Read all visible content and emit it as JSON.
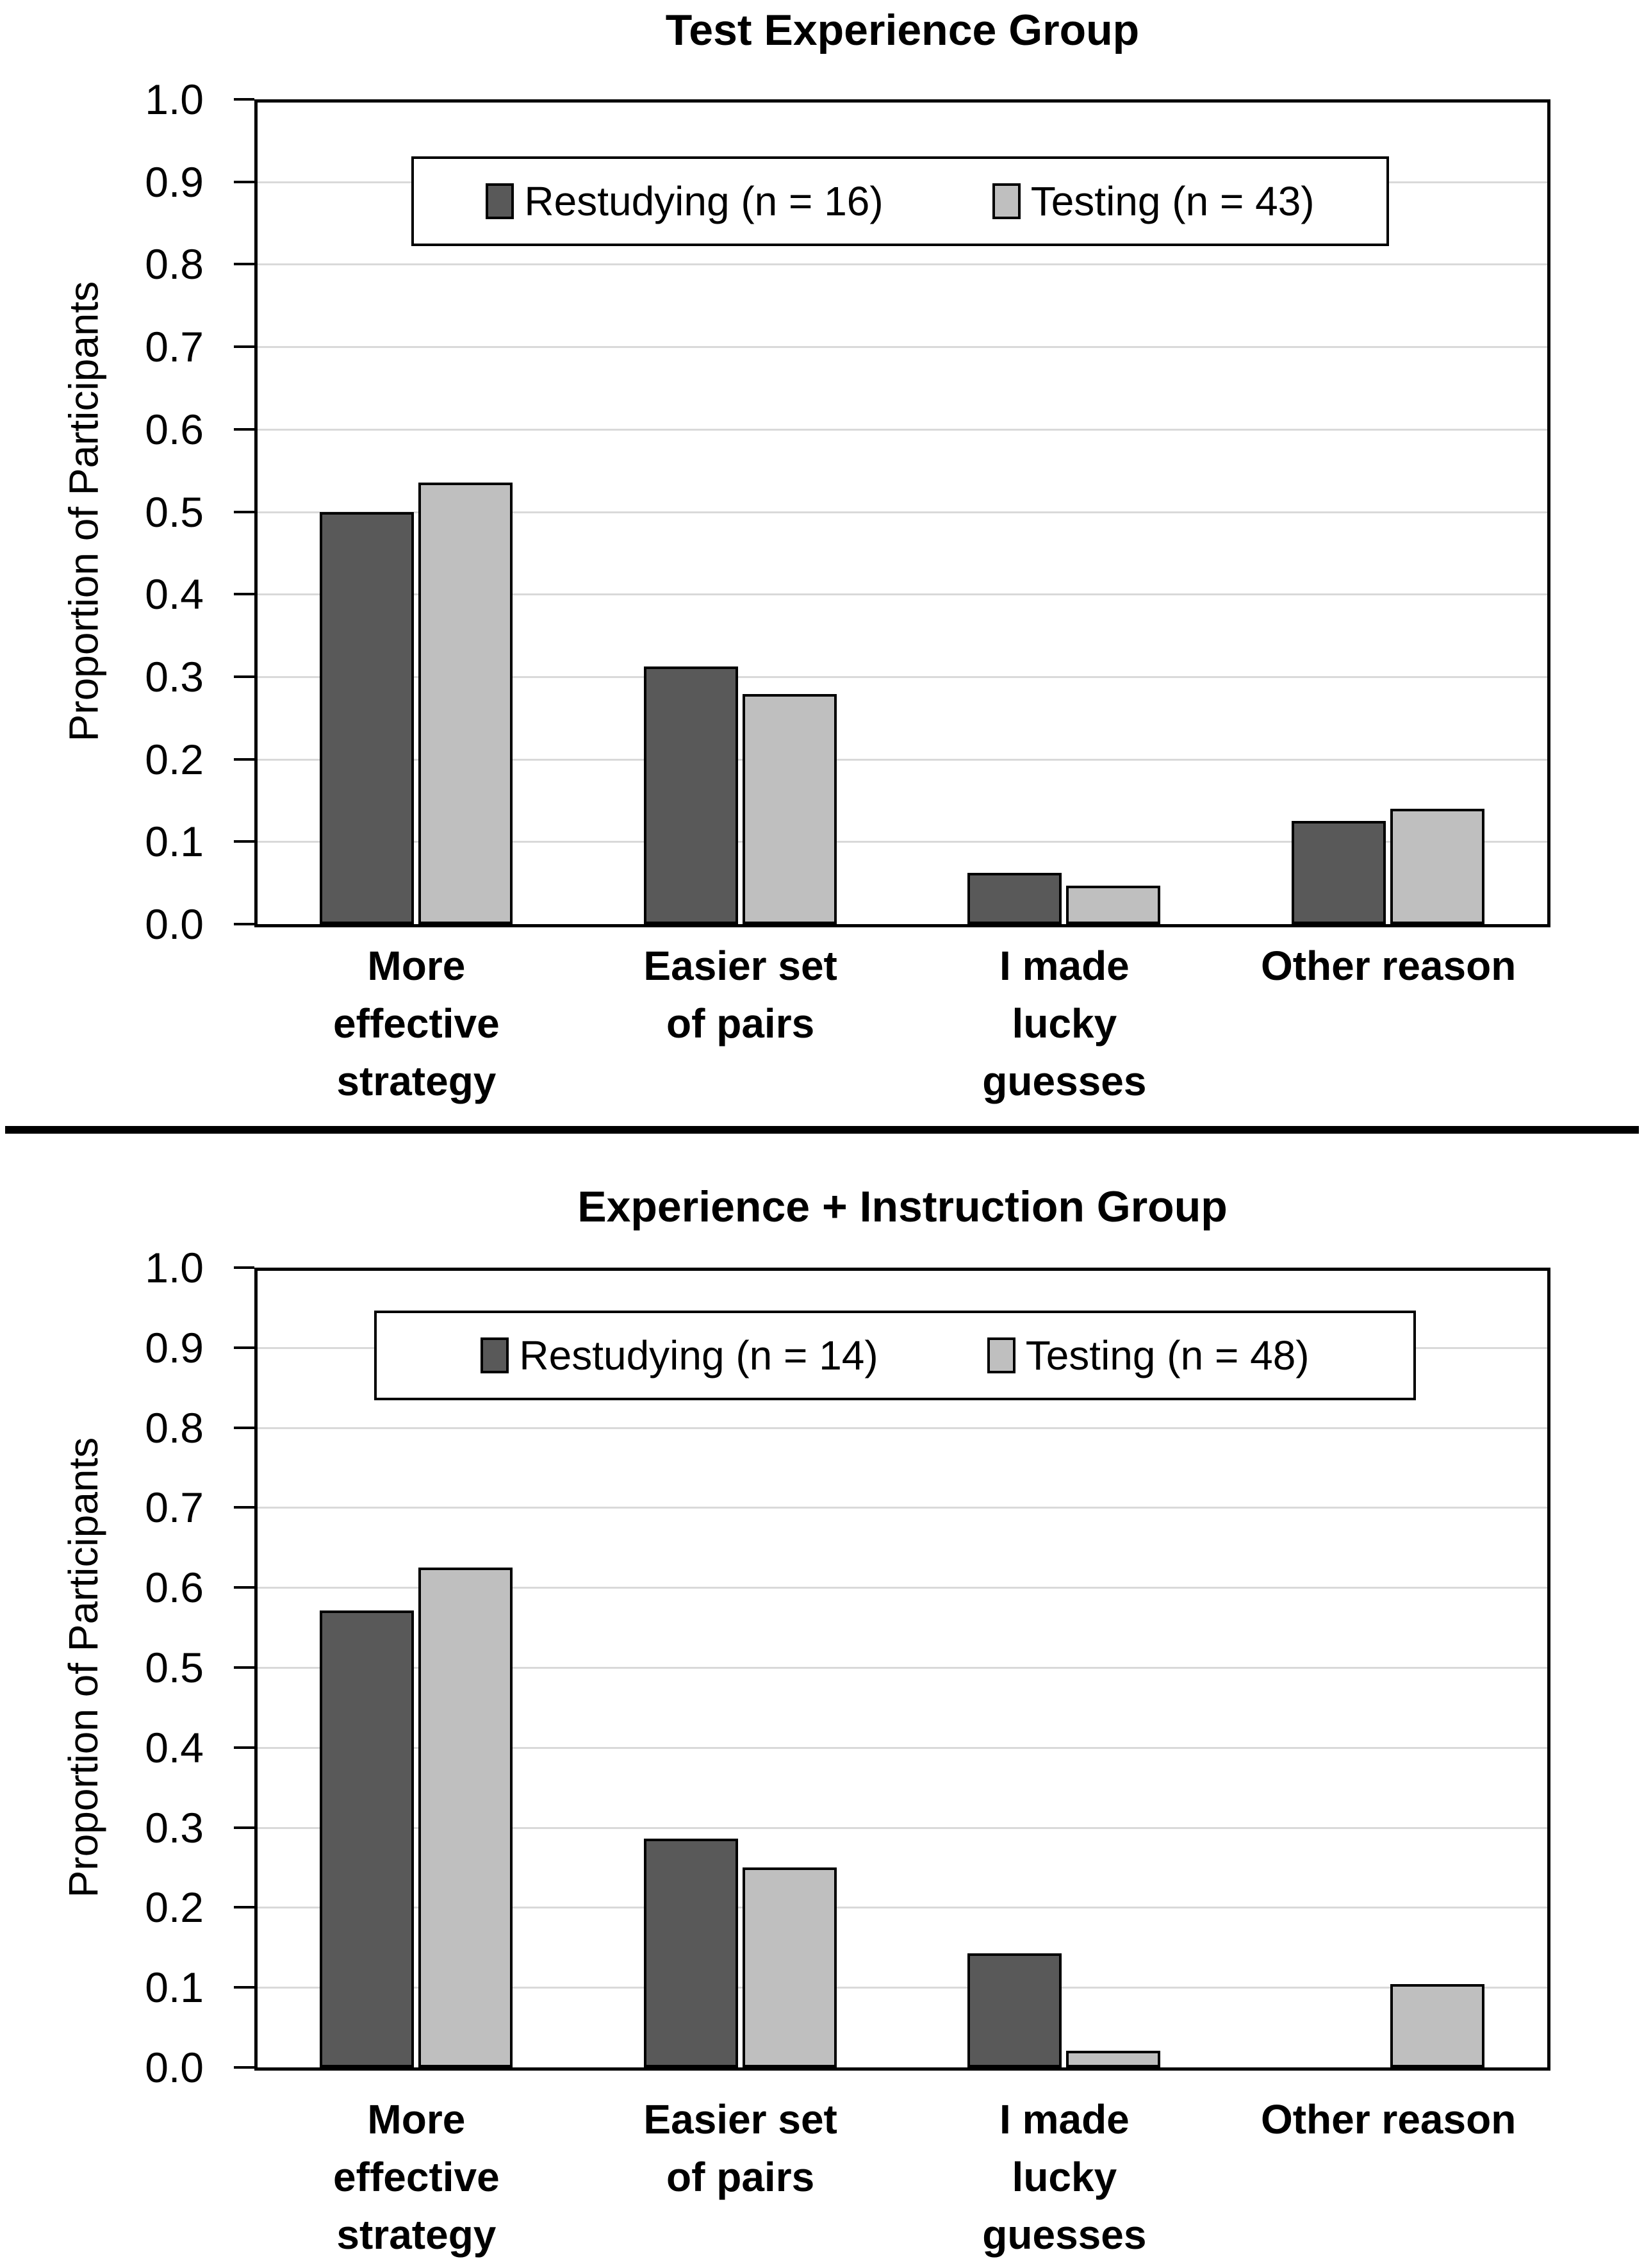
{
  "figure_background": "#FFFFFF",
  "style": {
    "dark_series_color": "#595959",
    "light_series_color": "#BFBFBF",
    "gridline_color": "#D9D9D9",
    "axis_color": "#000000",
    "bar_border_color": "#000000"
  },
  "chart_data": [
    {
      "type": "bar",
      "title": "Test Experience Group",
      "ylabel": "Proportion of Participants",
      "xlabel": "",
      "categories": [
        "More effective strategy",
        "Easier set of pairs",
        "I made lucky guesses",
        "Other reason"
      ],
      "category_lines": [
        [
          "More",
          "effective",
          "strategy"
        ],
        [
          "Easier set",
          "of pairs"
        ],
        [
          "I made",
          "lucky",
          "guesses"
        ],
        [
          "Other reason"
        ]
      ],
      "series": [
        {
          "name": "Restudying (n = 16)",
          "color": "#595959",
          "values": [
            0.5,
            0.3125,
            0.0625,
            0.125
          ]
        },
        {
          "name": "Testing (n = 43)",
          "color": "#BFBFBF",
          "values": [
            0.535,
            0.279,
            0.047,
            0.14
          ]
        }
      ],
      "ylim": [
        0.0,
        1.0
      ],
      "yticks": [
        "0.0",
        "0.1",
        "0.2",
        "0.3",
        "0.4",
        "0.5",
        "0.6",
        "0.7",
        "0.8",
        "0.9",
        "1.0"
      ],
      "grid": true,
      "legend_position": "inside-top-center"
    },
    {
      "type": "bar",
      "title": "Experience + Instruction Group",
      "ylabel": "Proportion of Participants",
      "xlabel": "",
      "categories": [
        "More effective strategy",
        "Easier set of pairs",
        "I made lucky guesses",
        "Other reason"
      ],
      "category_lines": [
        [
          "More",
          "effective",
          "strategy"
        ],
        [
          "Easier set",
          "of pairs"
        ],
        [
          "I made",
          "lucky",
          "guesses"
        ],
        [
          "Other reason"
        ]
      ],
      "series": [
        {
          "name": "Restudying (n = 14)",
          "color": "#595959",
          "values": [
            0.571,
            0.286,
            0.143,
            0
          ]
        },
        {
          "name": "Testing (n = 48)",
          "color": "#BFBFBF",
          "values": [
            0.625,
            0.25,
            0.021,
            0.104
          ]
        }
      ],
      "ylim": [
        0.0,
        1.0
      ],
      "yticks": [
        "0.0",
        "0.1",
        "0.2",
        "0.3",
        "0.4",
        "0.5",
        "0.6",
        "0.7",
        "0.8",
        "0.9",
        "1.0"
      ],
      "grid": true,
      "legend_position": "inside-top-center"
    }
  ]
}
